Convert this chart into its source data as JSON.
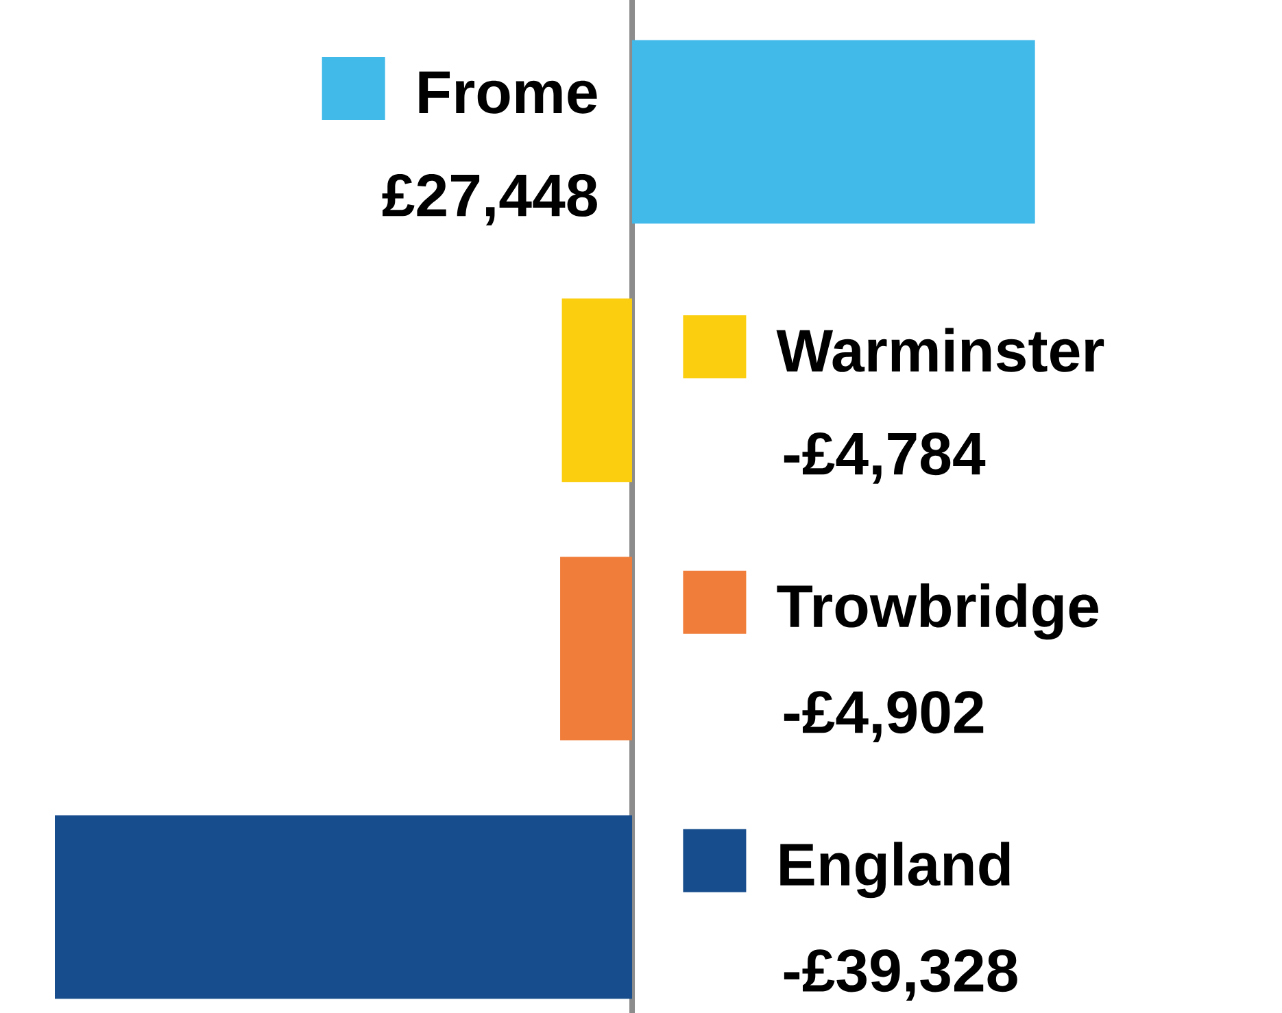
{
  "chart_data": {
    "type": "bar",
    "orientation": "horizontal",
    "categories": [
      "Frome",
      "Warminster",
      "Trowbridge",
      "England"
    ],
    "values": [
      27448,
      -4784,
      -4902,
      -39328
    ],
    "colors": [
      "#41b9e9",
      "#fbce10",
      "#f07d3a",
      "#174d8c"
    ],
    "value_labels": [
      "£27,448",
      "-£4,784",
      "-£4,902",
      "-£39,328"
    ]
  }
}
